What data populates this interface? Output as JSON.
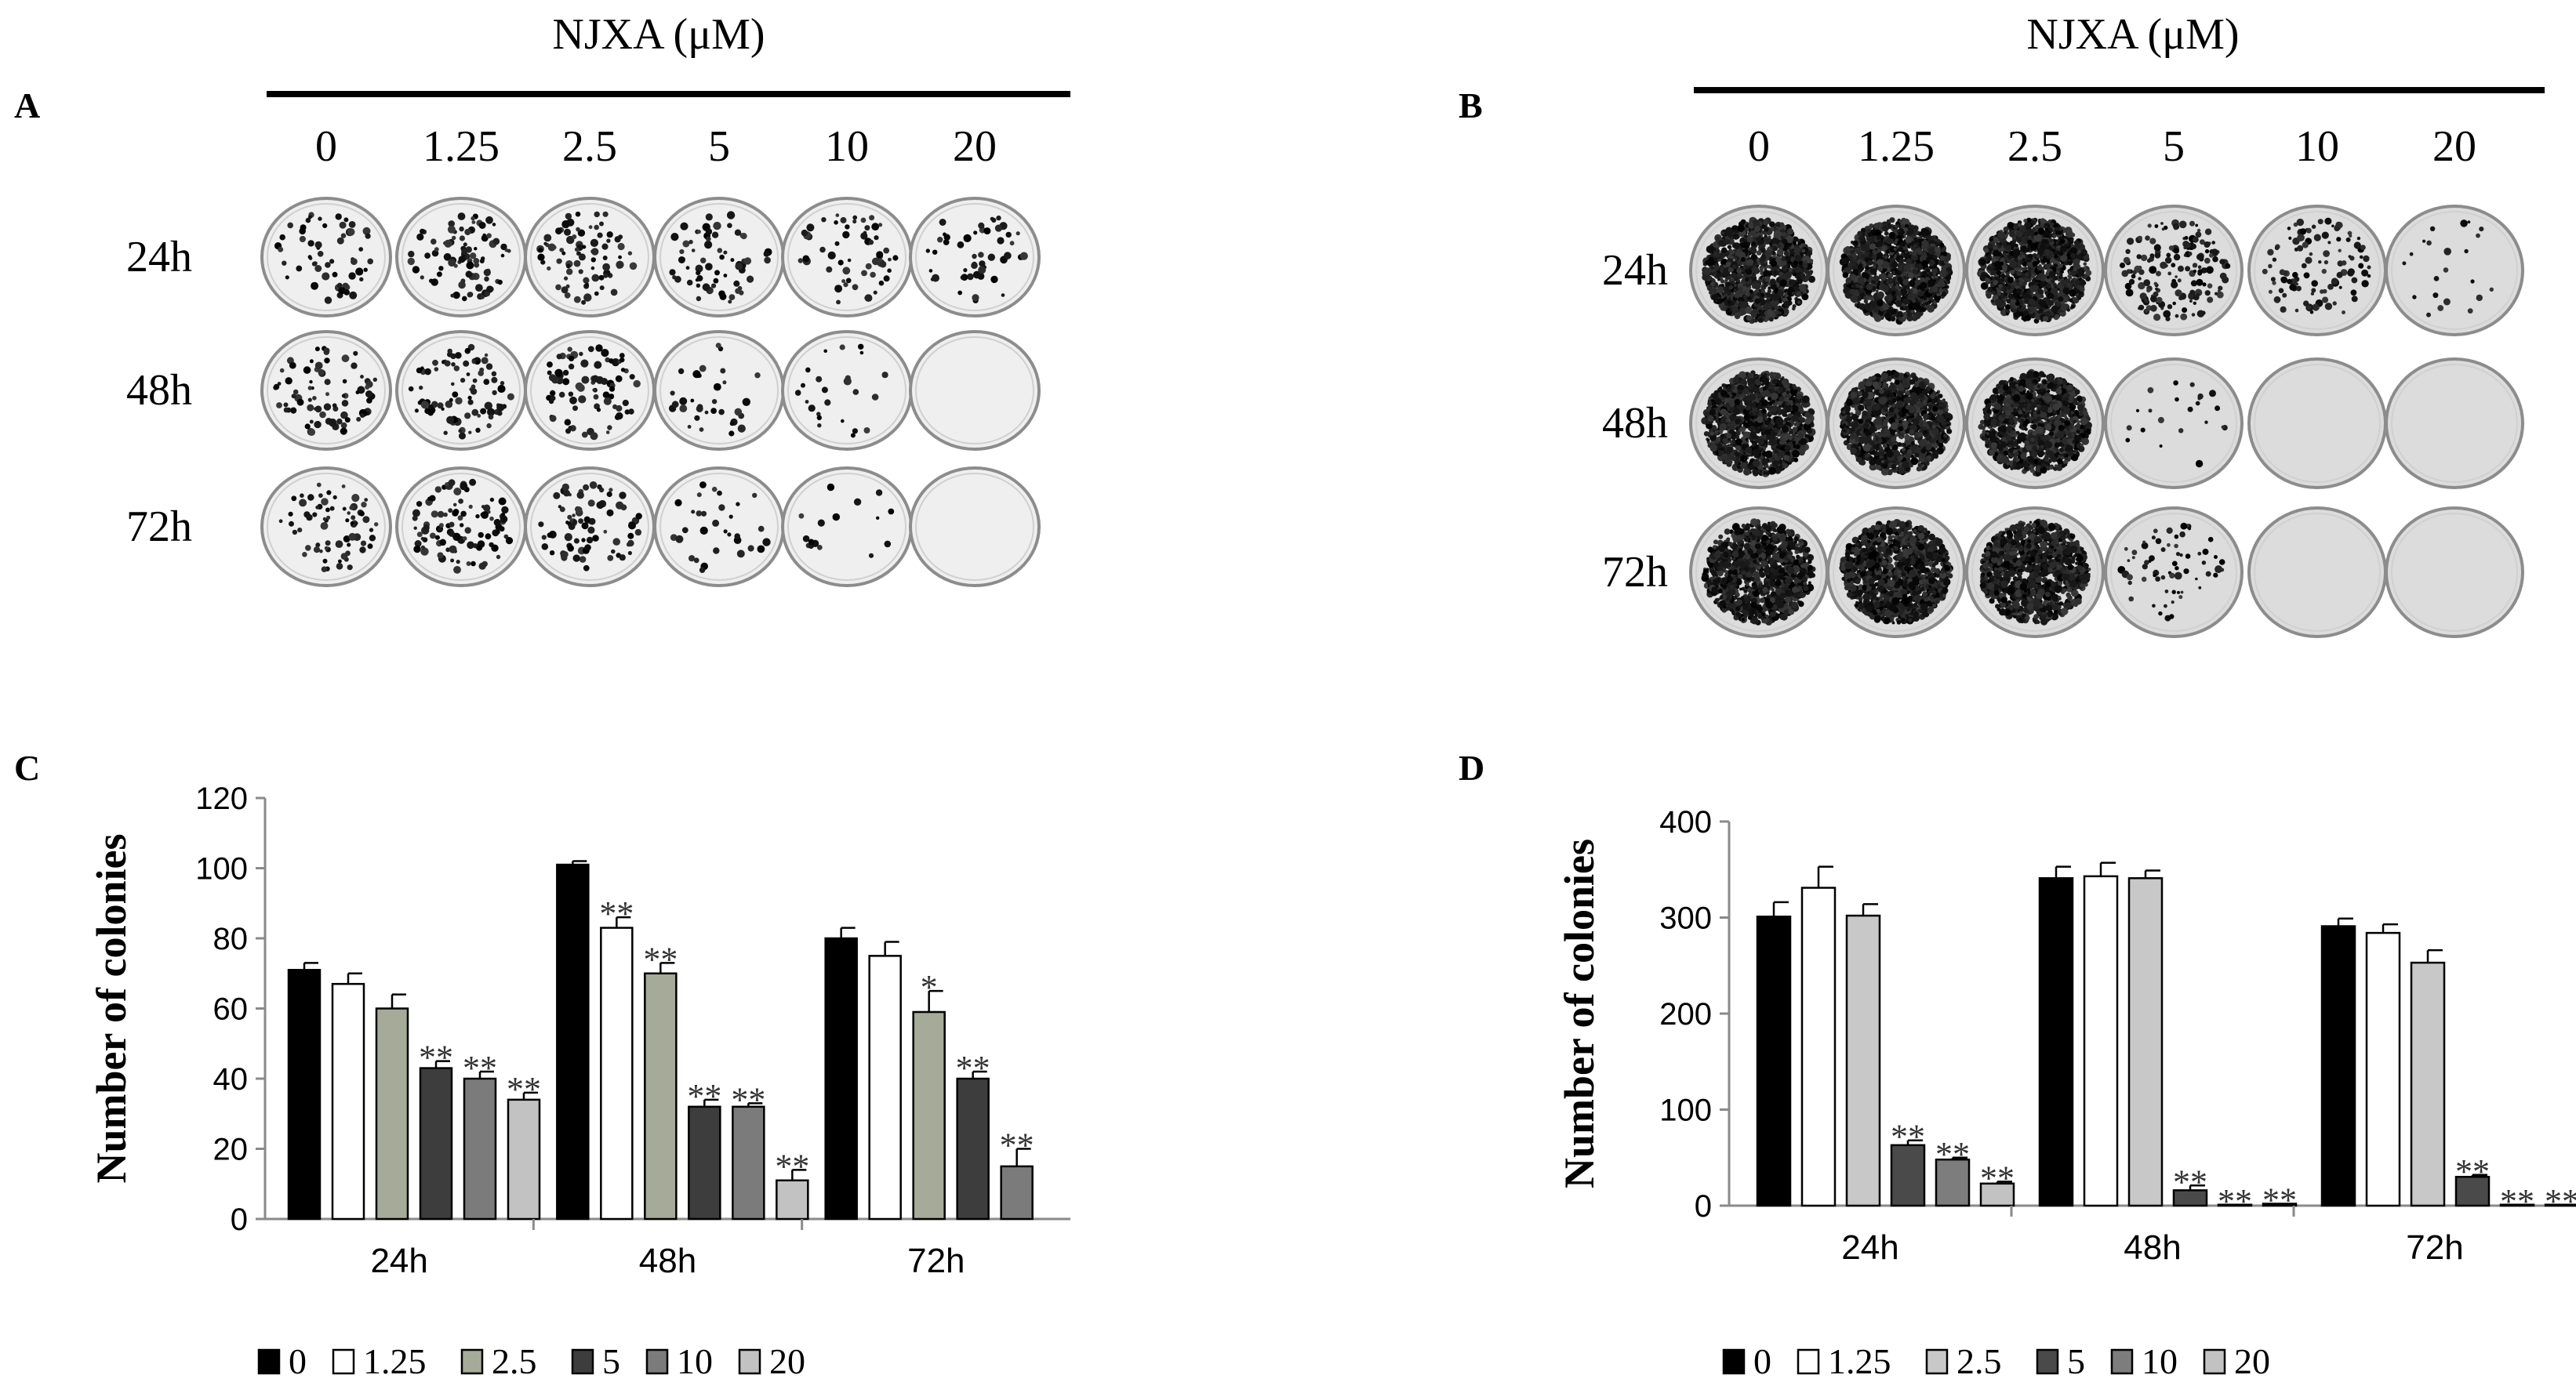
{
  "panels": {
    "A": {
      "label": "A",
      "header": "NJXA (μM)",
      "concentrations": [
        "0",
        "1.25",
        "2.5",
        "5",
        "10",
        "20"
      ],
      "timepoints": [
        "24h",
        "48h",
        "72h"
      ],
      "colony_density": [
        [
          0.35,
          0.55,
          0.5,
          0.4,
          0.35,
          0.3
        ],
        [
          0.5,
          0.55,
          0.5,
          0.2,
          0.15,
          0.0
        ],
        [
          0.45,
          0.6,
          0.5,
          0.2,
          0.1,
          0.0
        ]
      ]
    },
    "B": {
      "label": "B",
      "header": "NJXA (μM)",
      "concentrations": [
        "0",
        "1.25",
        "2.5",
        "5",
        "10",
        "20"
      ],
      "timepoints": [
        "24h",
        "48h",
        "72h"
      ],
      "colony_density": [
        [
          0.9,
          1.0,
          1.0,
          0.15,
          0.1,
          0.02
        ],
        [
          1.0,
          1.0,
          1.0,
          0.02,
          0.0,
          0.0
        ],
        [
          0.9,
          1.0,
          1.0,
          0.06,
          0.0,
          0.0
        ]
      ]
    }
  },
  "chart_data": [
    {
      "panel": "C",
      "type": "bar",
      "title": "",
      "ylabel": "Number of colonies",
      "xlabel": "",
      "categories": [
        "24h",
        "48h",
        "72h"
      ],
      "ylim": [
        0,
        120
      ],
      "yticks": [
        0,
        20,
        40,
        60,
        80,
        100,
        120
      ],
      "colors": [
        "#000000",
        "#ffffff",
        "#a6aa98",
        "#3d3d3d",
        "#7b7b7b",
        "#c2c2c2"
      ],
      "series": [
        {
          "name": "0",
          "values": [
            71,
            101,
            80
          ],
          "errors": [
            2,
            1,
            3
          ],
          "sig": [
            "",
            "",
            ""
          ]
        },
        {
          "name": "1.25",
          "values": [
            67,
            83,
            75
          ],
          "errors": [
            3,
            3,
            4
          ],
          "sig": [
            "",
            "**",
            ""
          ]
        },
        {
          "name": "2.5",
          "values": [
            60,
            70,
            59
          ],
          "errors": [
            4,
            3,
            6
          ],
          "sig": [
            "",
            "**",
            "*"
          ]
        },
        {
          "name": "5",
          "values": [
            43,
            32,
            40
          ],
          "errors": [
            2,
            2,
            2
          ],
          "sig": [
            "**",
            "**",
            "**"
          ]
        },
        {
          "name": "10",
          "values": [
            40,
            32,
            15
          ],
          "errors": [
            2,
            1,
            5
          ],
          "sig": [
            "**",
            "**",
            "**"
          ]
        },
        {
          "name": "20",
          "values": [
            34,
            11,
            null
          ],
          "errors": [
            2,
            3,
            null
          ],
          "sig": [
            "**",
            "**",
            ""
          ]
        }
      ]
    },
    {
      "panel": "D",
      "type": "bar",
      "title": "",
      "ylabel": "Number of colonies",
      "xlabel": "",
      "categories": [
        "24h",
        "48h",
        "72h"
      ],
      "ylim": [
        0,
        400
      ],
      "yticks": [
        0,
        100,
        200,
        300,
        400
      ],
      "colors": [
        "#000000",
        "#ffffff",
        "#c8c8c8",
        "#4a4a4a",
        "#7d7d7d",
        "#c2c2c2"
      ],
      "series": [
        {
          "name": "0",
          "values": [
            301,
            341,
            291
          ],
          "errors": [
            15,
            12,
            8
          ],
          "sig": [
            "",
            "",
            ""
          ]
        },
        {
          "name": "1.25",
          "values": [
            331,
            343,
            284
          ],
          "errors": [
            22,
            14,
            9
          ],
          "sig": [
            "",
            "",
            ""
          ]
        },
        {
          "name": "2.5",
          "values": [
            302,
            341,
            253
          ],
          "errors": [
            12,
            8,
            13
          ],
          "sig": [
            "",
            "",
            ""
          ]
        },
        {
          "name": "5",
          "values": [
            63,
            16,
            30
          ],
          "errors": [
            5,
            5,
            2
          ],
          "sig": [
            "**",
            "**",
            "**"
          ]
        },
        {
          "name": "10",
          "values": [
            48,
            1,
            1
          ],
          "errors": [
            2,
            0,
            0
          ],
          "sig": [
            "**",
            "**",
            "**"
          ]
        },
        {
          "name": "20",
          "values": [
            23,
            2,
            1
          ],
          "errors": [
            2,
            0,
            0
          ],
          "sig": [
            "**",
            "**",
            "**"
          ]
        }
      ]
    }
  ],
  "panel_labels": {
    "C": "C",
    "D": "D"
  }
}
